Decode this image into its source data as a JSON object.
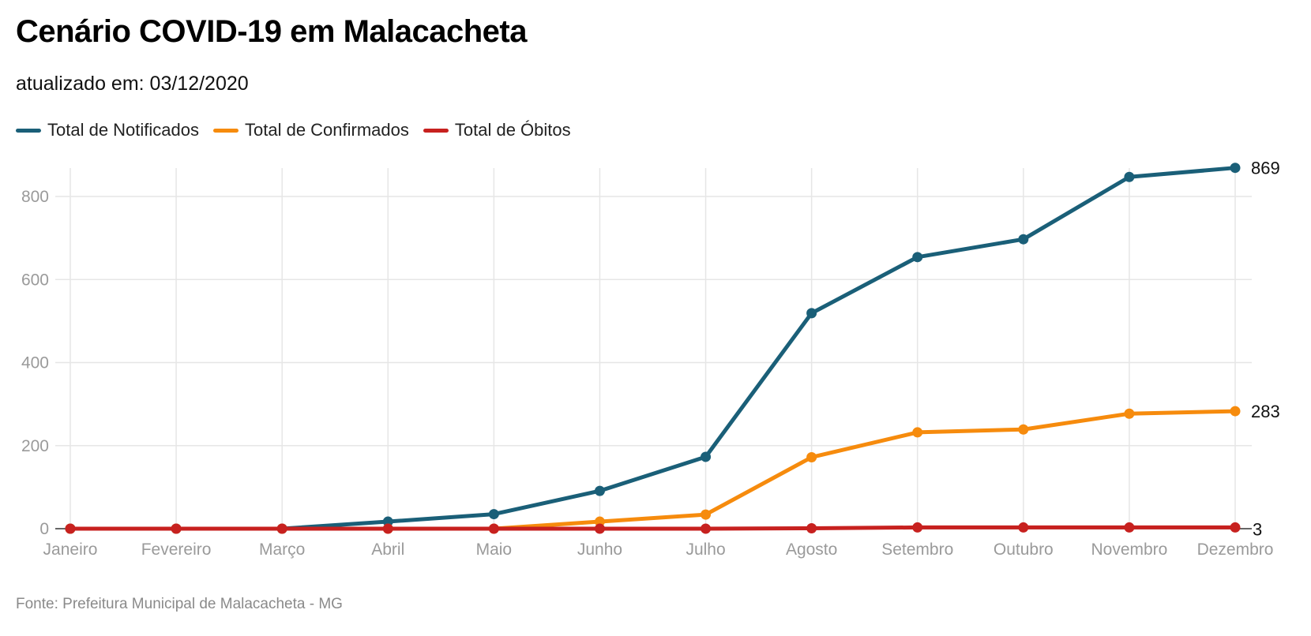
{
  "header": {
    "title": "Cenário COVID-19 em Malacacheta",
    "subtitle": "atualizado em: 03/12/2020"
  },
  "footer": {
    "source": "Fonte: Prefeitura Municipal de Malacacheta - MG"
  },
  "chart_data": {
    "type": "line",
    "categories": [
      "Janeiro",
      "Fevereiro",
      "Março",
      "Abril",
      "Maio",
      "Junho",
      "Julho",
      "Agosto",
      "Setembro",
      "Outubro",
      "Novembro",
      "Dezembro"
    ],
    "series": [
      {
        "name": "Total de Notificados",
        "color": "#1a5f78",
        "values": [
          0,
          0,
          0,
          17,
          35,
          91,
          173,
          519,
          654,
          697,
          847,
          869
        ],
        "end_label": "869"
      },
      {
        "name": "Total de Confirmados",
        "color": "#f68b0d",
        "values": [
          0,
          0,
          0,
          0,
          0,
          17,
          34,
          172,
          232,
          239,
          277,
          283
        ],
        "end_label": "283"
      },
      {
        "name": "Total de Óbitos",
        "color": "#c7211f",
        "values": [
          0,
          0,
          0,
          0,
          0,
          0,
          0,
          1,
          3,
          3,
          3,
          3
        ],
        "end_label": "3"
      }
    ],
    "y_ticks": [
      "0",
      "200",
      "400",
      "600",
      "800"
    ],
    "ylim": [
      0,
      869
    ],
    "grid": true,
    "legend_placement": "top-left",
    "xlabel": "",
    "ylabel": ""
  }
}
